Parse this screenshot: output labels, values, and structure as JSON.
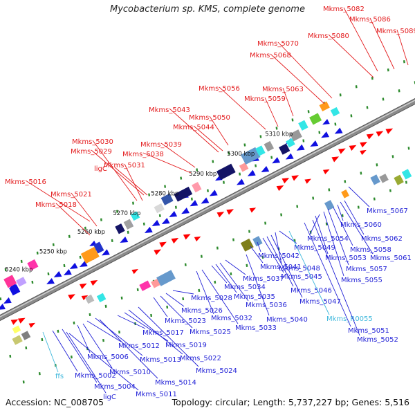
{
  "title": "Mycobacterium sp. KMS, complete genome",
  "footer": {
    "accession": "Accession: NC_008705",
    "summary": "Topology: circular; Length: 5,737,227 bp; Genes: 5,516"
  },
  "colors": {
    "forward_label": "#e31a1c",
    "reverse_label": "#1f1fd6",
    "rna_label": "#3fb8dc",
    "backbone": "#8a8a8a",
    "forward_gene": "#ff0000",
    "reverse_gene": "#1010e0"
  },
  "scale_ticks": [
    "5240 kbp",
    "5250 kbp",
    "5260 kbp",
    "5270 kbp",
    "5280 kbp",
    "5290 kbp",
    "5300 kbp",
    "5310 kbp"
  ],
  "top_labels": [
    {
      "text": "Mkms_5016",
      "color": "red"
    },
    {
      "text": "Mkms_5021",
      "color": "red"
    },
    {
      "text": "Mkms_5018",
      "color": "red"
    },
    {
      "text": "Mkms_5030",
      "color": "red"
    },
    {
      "text": "Mkms_5029",
      "color": "red"
    },
    {
      "text": "ligC",
      "color": "red"
    },
    {
      "text": "Mkms_5031",
      "color": "red"
    },
    {
      "text": "Mkms_5038",
      "color": "red"
    },
    {
      "text": "Mkms_5039",
      "color": "red"
    },
    {
      "text": "Mkms_5043",
      "color": "red"
    },
    {
      "text": "Mkms_5044",
      "color": "red"
    },
    {
      "text": "Mkms_5050",
      "color": "red"
    },
    {
      "text": "Mkms_5056",
      "color": "red"
    },
    {
      "text": "Mkms_5059",
      "color": "red"
    },
    {
      "text": "Mkms_5063",
      "color": "red"
    },
    {
      "text": "Mkms_5068",
      "color": "red"
    },
    {
      "text": "Mkms_5070",
      "color": "red"
    },
    {
      "text": "Mkms_5080",
      "color": "red"
    },
    {
      "text": "Mkms_5082",
      "color": "red"
    },
    {
      "text": "Mkms_5086",
      "color": "red"
    },
    {
      "text": "Mkms_5089",
      "color": "red"
    }
  ],
  "bottom_labels": [
    {
      "text": "ffs",
      "color": "rna"
    },
    {
      "text": "Mkms_5002",
      "color": "blue"
    },
    {
      "text": "Mkms_5004",
      "color": "blue"
    },
    {
      "text": "ligC",
      "color": "blue"
    },
    {
      "text": "Mkms_5011",
      "color": "blue"
    },
    {
      "text": "Mkms_5006",
      "color": "blue"
    },
    {
      "text": "Mkms_5010",
      "color": "blue"
    },
    {
      "text": "Mkms_5012",
      "color": "blue"
    },
    {
      "text": "Mkms_5013",
      "color": "blue"
    },
    {
      "text": "Mkms_5014",
      "color": "blue"
    },
    {
      "text": "Mkms_5017",
      "color": "blue"
    },
    {
      "text": "Mkms_5019",
      "color": "blue"
    },
    {
      "text": "Mkms_5022",
      "color": "blue"
    },
    {
      "text": "Mkms_5024",
      "color": "blue"
    },
    {
      "text": "Mkms_5023",
      "color": "blue"
    },
    {
      "text": "Mkms_5025",
      "color": "blue"
    },
    {
      "text": "Mkms_5026",
      "color": "blue"
    },
    {
      "text": "Mkms_5028",
      "color": "blue"
    },
    {
      "text": "Mkms_5032",
      "color": "blue"
    },
    {
      "text": "Mkms_5033",
      "color": "blue"
    },
    {
      "text": "Mkms_5034",
      "color": "blue"
    },
    {
      "text": "Mkms_5035",
      "color": "blue"
    },
    {
      "text": "Mkms_5036",
      "color": "blue"
    },
    {
      "text": "Mkms_5037",
      "color": "blue"
    },
    {
      "text": "Mkms_5040",
      "color": "blue"
    },
    {
      "text": "Mkms_5041",
      "color": "blue"
    },
    {
      "text": "Mkms_5042",
      "color": "blue"
    },
    {
      "text": "Mkms_5045",
      "color": "blue"
    },
    {
      "text": "Mkms_5046",
      "color": "blue"
    },
    {
      "text": "Mkms_5047",
      "color": "blue"
    },
    {
      "text": "Mkms_5048",
      "color": "blue"
    },
    {
      "text": "Mkms_5049",
      "color": "blue"
    },
    {
      "text": "Mkms_R0055",
      "color": "rna"
    },
    {
      "text": "Mkms_5051",
      "color": "blue"
    },
    {
      "text": "Mkms_5052",
      "color": "blue"
    },
    {
      "text": "Mkms_5053",
      "color": "blue"
    },
    {
      "text": "Mkms_5054",
      "color": "blue"
    },
    {
      "text": "Mkms_5055",
      "color": "blue"
    },
    {
      "text": "Mkms_5057",
      "color": "blue"
    },
    {
      "text": "Mkms_5058",
      "color": "blue"
    },
    {
      "text": "Mkms_5060",
      "color": "blue"
    },
    {
      "text": "Mkms_5061",
      "color": "blue"
    },
    {
      "text": "Mkms_5062",
      "color": "blue"
    },
    {
      "text": "Mkms_5067",
      "color": "blue"
    }
  ]
}
